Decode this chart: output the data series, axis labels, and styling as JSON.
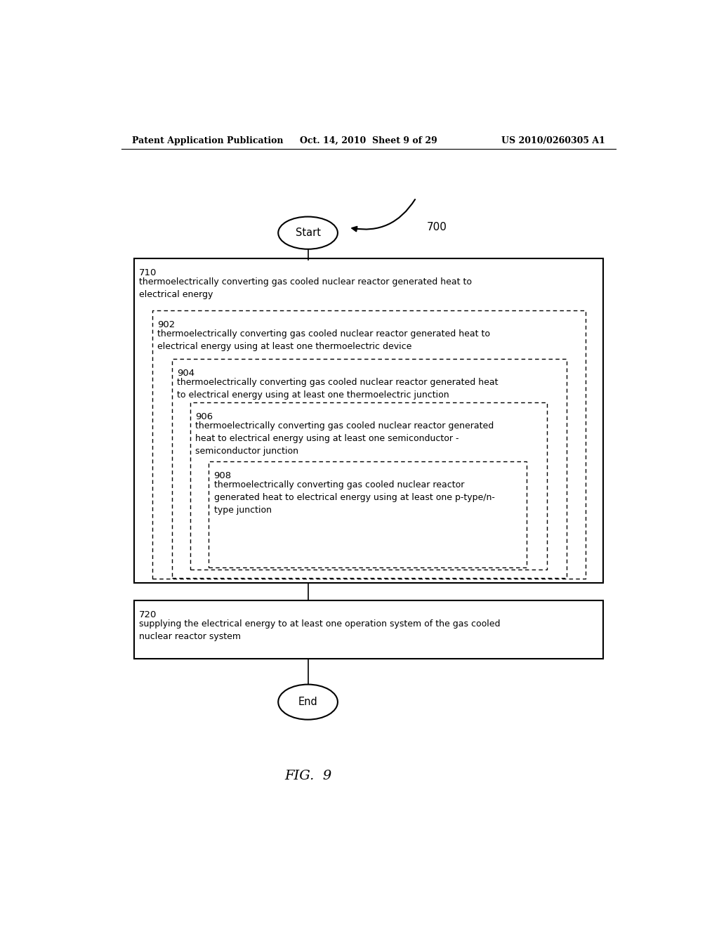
{
  "background_color": "#ffffff",
  "header_left": "Patent Application Publication",
  "header_center": "Oct. 14, 2010  Sheet 9 of 29",
  "header_right": "US 2010/0260305 A1",
  "footer_label": "FIG.  9",
  "start_label": "Start",
  "end_label": "End",
  "label_700": "700",
  "text710_label": "710",
  "text710": "thermoelectrically converting gas cooled nuclear reactor generated heat to\nelectrical energy",
  "text902_label": "902",
  "text902": "thermoelectrically converting gas cooled nuclear reactor generated heat to\nelectrical energy using at least one thermoelectric device",
  "text904_label": "904",
  "text904": "thermoelectrically converting gas cooled nuclear reactor generated heat\nto electrical energy using at least one thermoelectric junction",
  "text906_label": "906",
  "text906": "thermoelectrically converting gas cooled nuclear reactor generated\nheat to electrical energy using at least one semiconductor -\nsemiconductor junction",
  "text908_label": "908",
  "text908": "thermoelectrically converting gas cooled nuclear reactor\ngenerated heat to electrical energy using at least one p-type/n-\ntype junction",
  "text720_label": "720",
  "text720": "supplying the electrical energy to at least one operation system of the gas cooled\nnuclear reactor system"
}
